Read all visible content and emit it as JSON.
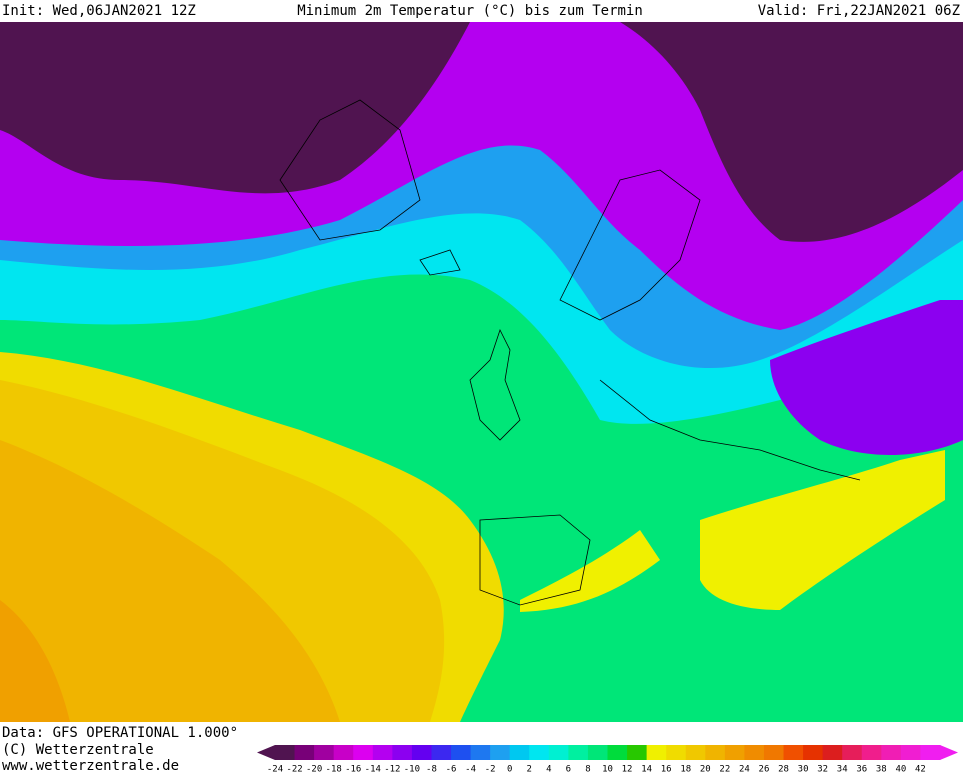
{
  "header": {
    "init": "Init: Wed,06JAN2021 12Z",
    "title": "Minimum 2m Temperatur (°C) bis zum Termin",
    "valid": "Valid: Fri,22JAN2021 06Z"
  },
  "footer": {
    "data": "Data: GFS OPERATIONAL 1.000°",
    "copyright": "(C) Wetterzentrale",
    "url": "www.wetterzentrale.de"
  },
  "legend": {
    "levels": [
      -24,
      -22,
      -20,
      -18,
      -16,
      -14,
      -12,
      -10,
      -8,
      -6,
      -4,
      -2,
      0,
      2,
      4,
      6,
      8,
      10,
      12,
      14,
      16,
      18,
      20,
      22,
      24,
      26,
      28,
      30,
      32,
      34,
      36,
      38,
      40,
      42
    ],
    "colors": [
      "#501450",
      "#780078",
      "#a000a0",
      "#c800c8",
      "#dc00f0",
      "#b400f0",
      "#8c00f0",
      "#6400f0",
      "#3c28f0",
      "#1e50f0",
      "#1e78f0",
      "#1ea0f0",
      "#00c8f0",
      "#00e6f0",
      "#00f0d2",
      "#00f0a0",
      "#00e678",
      "#00dc3c",
      "#28c800",
      "#f0f000",
      "#f0dc00",
      "#f0c800",
      "#f0b400",
      "#f0a000",
      "#f08c00",
      "#f07800",
      "#f05000",
      "#e63200",
      "#dc1e1e",
      "#e61e5a",
      "#f01e8c",
      "#f01eb4",
      "#f01ed2",
      "#f01ef0"
    ]
  }
}
